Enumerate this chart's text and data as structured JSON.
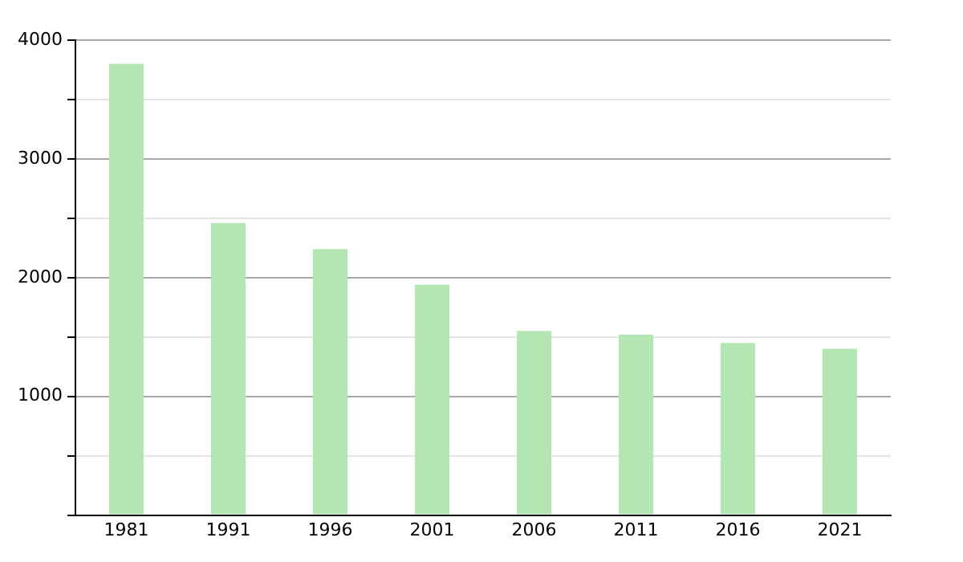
{
  "chart_data": {
    "type": "bar",
    "categories": [
      "1981",
      "1991",
      "1996",
      "2001",
      "2006",
      "2011",
      "2016",
      "2021"
    ],
    "values": [
      3800,
      2460,
      2240,
      1940,
      1550,
      1520,
      1450,
      1400
    ],
    "color": "#b3e6b3",
    "ylim": [
      0,
      4000
    ],
    "yticks": [
      {
        "value": 0,
        "label": null
      },
      {
        "value": 500,
        "label": null
      },
      1000,
      {
        "value": 1500,
        "label": null
      },
      2000,
      {
        "value": 2500,
        "label": null
      },
      3000,
      {
        "value": 3500,
        "label": null
      },
      4000
    ],
    "grid": "y"
  }
}
